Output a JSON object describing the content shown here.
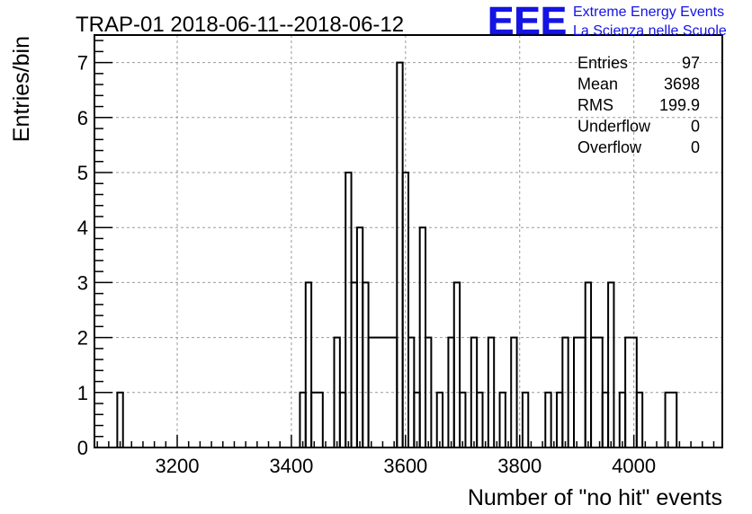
{
  "chart_data": {
    "type": "histogram",
    "title": "TRAP-01 2018-06-11--2018-06-12",
    "xlabel": "Number of \"no hit\" events",
    "ylabel": "Entries/bin",
    "xlim": [
      3055,
      4155
    ],
    "ylim": [
      0,
      7.5
    ],
    "bin_width": 10,
    "x_ticks": [
      3200,
      3400,
      3600,
      3800,
      4000
    ],
    "y_ticks": [
      0,
      1,
      2,
      3,
      4,
      5,
      6,
      7
    ],
    "grid": true,
    "bins": [
      {
        "x0": 3095,
        "x1": 3105,
        "y": 1
      },
      {
        "x0": 3415,
        "x1": 3425,
        "y": 1
      },
      {
        "x0": 3425,
        "x1": 3435,
        "y": 3
      },
      {
        "x0": 3435,
        "x1": 3455,
        "y": 1
      },
      {
        "x0": 3475,
        "x1": 3485,
        "y": 2
      },
      {
        "x0": 3485,
        "x1": 3495,
        "y": 1
      },
      {
        "x0": 3495,
        "x1": 3505,
        "y": 5
      },
      {
        "x0": 3505,
        "x1": 3515,
        "y": 3
      },
      {
        "x0": 3515,
        "x1": 3525,
        "y": 4
      },
      {
        "x0": 3525,
        "x1": 3535,
        "y": 3
      },
      {
        "x0": 3535,
        "x1": 3585,
        "y": 2
      },
      {
        "x0": 3585,
        "x1": 3595,
        "y": 7
      },
      {
        "x0": 3595,
        "x1": 3605,
        "y": 5
      },
      {
        "x0": 3605,
        "x1": 3615,
        "y": 2
      },
      {
        "x0": 3615,
        "x1": 3625,
        "y": 1
      },
      {
        "x0": 3625,
        "x1": 3635,
        "y": 4
      },
      {
        "x0": 3635,
        "x1": 3645,
        "y": 2
      },
      {
        "x0": 3655,
        "x1": 3665,
        "y": 1
      },
      {
        "x0": 3675,
        "x1": 3685,
        "y": 2
      },
      {
        "x0": 3685,
        "x1": 3695,
        "y": 3
      },
      {
        "x0": 3695,
        "x1": 3705,
        "y": 1
      },
      {
        "x0": 3715,
        "x1": 3725,
        "y": 2
      },
      {
        "x0": 3725,
        "x1": 3735,
        "y": 1
      },
      {
        "x0": 3745,
        "x1": 3755,
        "y": 2
      },
      {
        "x0": 3765,
        "x1": 3775,
        "y": 1
      },
      {
        "x0": 3785,
        "x1": 3795,
        "y": 2
      },
      {
        "x0": 3805,
        "x1": 3815,
        "y": 1
      },
      {
        "x0": 3845,
        "x1": 3855,
        "y": 1
      },
      {
        "x0": 3865,
        "x1": 3875,
        "y": 1
      },
      {
        "x0": 3875,
        "x1": 3885,
        "y": 2
      },
      {
        "x0": 3895,
        "x1": 3915,
        "y": 2
      },
      {
        "x0": 3915,
        "x1": 3925,
        "y": 3
      },
      {
        "x0": 3925,
        "x1": 3945,
        "y": 2
      },
      {
        "x0": 3945,
        "x1": 3955,
        "y": 1
      },
      {
        "x0": 3955,
        "x1": 3965,
        "y": 3
      },
      {
        "x0": 3965,
        "x1": 3975,
        "y": 0
      },
      {
        "x0": 3975,
        "x1": 3985,
        "y": 1
      },
      {
        "x0": 3985,
        "x1": 4005,
        "y": 2
      },
      {
        "x0": 4005,
        "x1": 4015,
        "y": 1
      },
      {
        "x0": 4055,
        "x1": 4075,
        "y": 1
      }
    ],
    "stats": [
      {
        "label": "Entries",
        "value": "97"
      },
      {
        "label": "Mean",
        "value": "3698"
      },
      {
        "label": "RMS",
        "value": "199.9"
      },
      {
        "label": "Underflow",
        "value": "0"
      },
      {
        "label": "Overflow",
        "value": "0"
      }
    ]
  },
  "logo": {
    "mark": "EEE",
    "line1": "Extreme Energy Events",
    "line2": "La Scienza nelle Scuole",
    "color": "#1414e6"
  }
}
